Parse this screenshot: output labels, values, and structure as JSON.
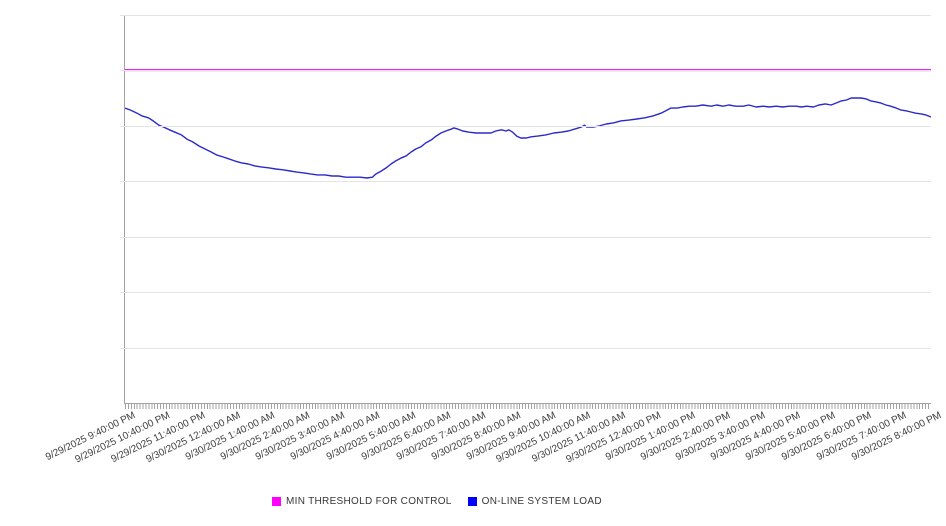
{
  "chart": {
    "background": "#ffffff",
    "axis_color": "#a3a3a3",
    "gridline_color": "#e4e4e4",
    "minor_tick_color": "#a3a3a3",
    "x_label_color": "#3d3d3d",
    "legend_text_color": "#363636"
  },
  "chart_data": {
    "type": "line",
    "title": "",
    "xlabel": "",
    "ylabel": "",
    "legend_position": "bottom-center",
    "grid": "horizontal-only",
    "x_tick_labels": [
      "9/29/2025 9:40:00 PM",
      "9/29/2025 10:40:00 PM",
      "9/29/2025 11:40:00 PM",
      "9/30/2025 12:40:00 AM",
      "9/30/2025 1:40:00 AM",
      "9/30/2025 2:40:00 AM",
      "9/30/2025 3:40:00 AM",
      "9/30/2025 4:40:00 AM",
      "9/30/2025 5:40:00 AM",
      "9/30/2025 6:40:00 AM",
      "9/30/2025 7:40:00 AM",
      "9/30/2025 8:40:00 AM",
      "9/30/2025 9:40:00 AM",
      "9/30/2025 10:40:00 AM",
      "9/30/2025 11:40:00 AM",
      "9/30/2025 12:40:00 PM",
      "9/30/2025 1:40:00 PM",
      "9/30/2025 2:40:00 PM",
      "9/30/2025 3:40:00 PM",
      "9/30/2025 4:40:00 PM",
      "9/30/2025 5:40:00 PM",
      "9/30/2025 6:40:00 PM",
      "9/30/2025 7:40:00 PM",
      "9/30/2025 8:40:00 PM"
    ],
    "x_minor_ticks_per_hour": 12,
    "y_axis": {
      "tick_labels_visible": false,
      "gridline_count": 8
    },
    "series": [
      {
        "name": "MIN THRESHOLD FOR CONTROL",
        "style": "constant-horizontal-line",
        "color": "#ee00ee",
        "legend_color": "#ff00ff",
        "stroke_width": 2,
        "level_pct": 85.8
      },
      {
        "name": "ON-LINE SYSTEM LOAD",
        "style": "line",
        "color": "#2a2ac9",
        "legend_color": "#0000ff",
        "stroke_width": 1.4,
        "points_pct": [
          [
            0,
            76.0
          ],
          [
            0.7,
            75.5
          ],
          [
            1.5,
            74.7
          ],
          [
            2.1,
            74.0
          ],
          [
            2.9,
            73.5
          ],
          [
            3.5,
            72.7
          ],
          [
            4.2,
            71.6
          ],
          [
            4.8,
            71.1
          ],
          [
            5.5,
            70.4
          ],
          [
            6.2,
            69.8
          ],
          [
            7.0,
            69.1
          ],
          [
            7.7,
            68.0
          ],
          [
            8.4,
            67.3
          ],
          [
            9.2,
            66.2
          ],
          [
            9.9,
            65.5
          ],
          [
            10.7,
            64.7
          ],
          [
            11.4,
            63.9
          ],
          [
            12.2,
            63.4
          ],
          [
            12.9,
            62.9
          ],
          [
            13.6,
            62.4
          ],
          [
            14.4,
            61.9
          ],
          [
            15.3,
            61.6
          ],
          [
            16.1,
            61.1
          ],
          [
            17.0,
            60.8
          ],
          [
            17.9,
            60.6
          ],
          [
            18.7,
            60.3
          ],
          [
            19.6,
            60.1
          ],
          [
            20.5,
            59.8
          ],
          [
            21.3,
            59.5
          ],
          [
            22.2,
            59.3
          ],
          [
            23.1,
            59.0
          ],
          [
            23.9,
            58.8
          ],
          [
            24.8,
            58.8
          ],
          [
            25.7,
            58.5
          ],
          [
            26.5,
            58.5
          ],
          [
            27.4,
            58.2
          ],
          [
            28.3,
            58.2
          ],
          [
            29.2,
            58.2
          ],
          [
            30.0,
            58.0
          ],
          [
            30.7,
            58.2
          ],
          [
            31.1,
            59.0
          ],
          [
            31.8,
            59.8
          ],
          [
            32.4,
            60.6
          ],
          [
            33.0,
            61.6
          ],
          [
            33.6,
            62.4
          ],
          [
            34.2,
            63.1
          ],
          [
            34.9,
            63.7
          ],
          [
            35.5,
            64.7
          ],
          [
            36.1,
            65.5
          ],
          [
            36.7,
            66.0
          ],
          [
            37.3,
            67.0
          ],
          [
            38.0,
            67.8
          ],
          [
            38.6,
            68.8
          ],
          [
            39.2,
            69.6
          ],
          [
            39.8,
            70.1
          ],
          [
            40.5,
            70.6
          ],
          [
            40.8,
            70.9
          ],
          [
            41.3,
            70.6
          ],
          [
            41.9,
            70.1
          ],
          [
            42.7,
            69.8
          ],
          [
            43.6,
            69.6
          ],
          [
            44.4,
            69.6
          ],
          [
            45.4,
            69.6
          ],
          [
            46.0,
            70.1
          ],
          [
            46.7,
            70.4
          ],
          [
            47.3,
            70.1
          ],
          [
            47.6,
            70.4
          ],
          [
            48.1,
            69.8
          ],
          [
            48.6,
            68.8
          ],
          [
            49.1,
            68.3
          ],
          [
            49.8,
            68.3
          ],
          [
            50.4,
            68.6
          ],
          [
            51.2,
            68.8
          ],
          [
            52.2,
            69.1
          ],
          [
            53.2,
            69.6
          ],
          [
            54.1,
            69.8
          ],
          [
            55.0,
            70.1
          ],
          [
            55.8,
            70.6
          ],
          [
            56.6,
            71.1
          ],
          [
            57.0,
            71.6
          ],
          [
            57.3,
            71.1
          ],
          [
            58.1,
            71.1
          ],
          [
            58.8,
            71.4
          ],
          [
            59.7,
            71.9
          ],
          [
            60.6,
            72.2
          ],
          [
            61.5,
            72.7
          ],
          [
            62.5,
            72.9
          ],
          [
            63.5,
            73.2
          ],
          [
            64.5,
            73.5
          ],
          [
            65.5,
            74.0
          ],
          [
            66.5,
            74.7
          ],
          [
            67.1,
            75.3
          ],
          [
            67.7,
            76.0
          ],
          [
            68.5,
            76.0
          ],
          [
            69.2,
            76.3
          ],
          [
            70.0,
            76.5
          ],
          [
            70.8,
            76.5
          ],
          [
            71.7,
            76.8
          ],
          [
            72.7,
            76.5
          ],
          [
            73.4,
            76.8
          ],
          [
            74.2,
            76.5
          ],
          [
            74.9,
            76.8
          ],
          [
            75.8,
            76.5
          ],
          [
            76.7,
            76.5
          ],
          [
            77.4,
            76.8
          ],
          [
            78.3,
            76.3
          ],
          [
            79.2,
            76.5
          ],
          [
            79.9,
            76.3
          ],
          [
            80.8,
            76.5
          ],
          [
            81.6,
            76.3
          ],
          [
            82.4,
            76.5
          ],
          [
            83.3,
            76.5
          ],
          [
            83.9,
            76.3
          ],
          [
            84.6,
            76.5
          ],
          [
            85.4,
            76.3
          ],
          [
            86.1,
            76.8
          ],
          [
            86.9,
            77.1
          ],
          [
            87.6,
            76.8
          ],
          [
            88.2,
            77.3
          ],
          [
            88.8,
            77.8
          ],
          [
            89.5,
            78.1
          ],
          [
            90.1,
            78.6
          ],
          [
            90.7,
            78.6
          ],
          [
            91.3,
            78.6
          ],
          [
            91.9,
            78.4
          ],
          [
            92.6,
            77.8
          ],
          [
            93.2,
            77.6
          ],
          [
            93.8,
            77.3
          ],
          [
            94.4,
            76.8
          ],
          [
            95.0,
            76.5
          ],
          [
            95.7,
            76.0
          ],
          [
            96.3,
            75.5
          ],
          [
            96.9,
            75.3
          ],
          [
            97.5,
            75.0
          ],
          [
            98.1,
            74.7
          ],
          [
            98.8,
            74.5
          ],
          [
            99.4,
            74.2
          ],
          [
            100,
            73.7
          ]
        ]
      }
    ]
  }
}
